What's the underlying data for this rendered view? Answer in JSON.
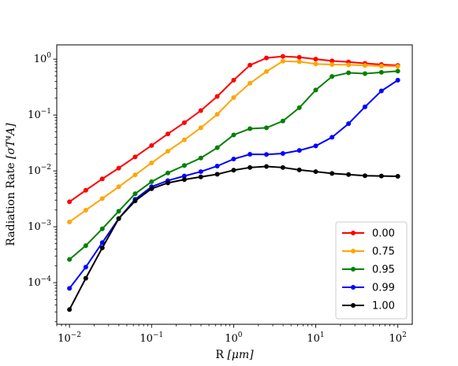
{
  "chart_data": {
    "type": "line",
    "xlabel_main": "R",
    "xlabel_unit": "[μm]",
    "ylabel_main": "Radiation Rate",
    "ylabel_unit": "[σT⁴A]",
    "xscale": "log",
    "yscale": "log",
    "xlim": [
      0.007,
      150
    ],
    "ylim": [
      1.8e-05,
      1.8
    ],
    "xticks": [
      {
        "value": 0.01,
        "base": "10",
        "exp": "−2"
      },
      {
        "value": 0.1,
        "base": "10",
        "exp": "−1"
      },
      {
        "value": 1,
        "base": "10",
        "exp": "0"
      },
      {
        "value": 10,
        "base": "10",
        "exp": "1"
      },
      {
        "value": 100,
        "base": "10",
        "exp": "2"
      }
    ],
    "yticks": [
      {
        "value": 0.0001,
        "base": "10",
        "exp": "−4"
      },
      {
        "value": 0.001,
        "base": "10",
        "exp": "−3"
      },
      {
        "value": 0.01,
        "base": "10",
        "exp": "−2"
      },
      {
        "value": 0.1,
        "base": "10",
        "exp": "−1"
      },
      {
        "value": 1,
        "base": "10",
        "exp": "0"
      }
    ],
    "legend_position": "lower-right",
    "grid": false,
    "x": [
      0.01,
      0.0158,
      0.0251,
      0.0398,
      0.0631,
      0.1,
      0.158,
      0.251,
      0.398,
      0.631,
      1.0,
      1.58,
      2.51,
      3.98,
      6.31,
      10.0,
      15.8,
      25.1,
      39.8,
      63.1,
      100.0
    ],
    "series": [
      {
        "name": "0.00",
        "color": "#ff0000",
        "values": [
          0.0028,
          0.0045,
          0.0072,
          0.0112,
          0.0178,
          0.0285,
          0.046,
          0.073,
          0.12,
          0.215,
          0.42,
          0.78,
          1.05,
          1.12,
          1.08,
          1.0,
          0.93,
          0.89,
          0.84,
          0.8,
          0.77
        ]
      },
      {
        "name": "0.75",
        "color": "#ffa500",
        "values": [
          0.00122,
          0.00198,
          0.0032,
          0.0052,
          0.0085,
          0.0139,
          0.0225,
          0.036,
          0.059,
          0.103,
          0.205,
          0.37,
          0.6,
          0.92,
          0.9,
          0.82,
          0.8,
          0.79,
          0.77,
          0.75,
          0.74
        ]
      },
      {
        "name": "0.95",
        "color": "#008000",
        "values": [
          0.00026,
          0.00046,
          0.00092,
          0.0019,
          0.0039,
          0.0064,
          0.0092,
          0.0125,
          0.017,
          0.026,
          0.044,
          0.057,
          0.059,
          0.078,
          0.135,
          0.28,
          0.49,
          0.57,
          0.55,
          0.58,
          0.61
        ]
      },
      {
        "name": "0.99",
        "color": "#0000ff",
        "values": [
          7.9e-05,
          0.00019,
          0.00052,
          0.0014,
          0.0031,
          0.0052,
          0.0067,
          0.0081,
          0.0097,
          0.0122,
          0.0163,
          0.0198,
          0.0197,
          0.0205,
          0.0232,
          0.028,
          0.04,
          0.07,
          0.14,
          0.27,
          0.42
        ]
      },
      {
        "name": "1.00",
        "color": "#000000",
        "values": [
          3.3e-05,
          0.00012,
          0.00042,
          0.0014,
          0.0029,
          0.0048,
          0.0061,
          0.007,
          0.0078,
          0.0087,
          0.0103,
          0.0115,
          0.012,
          0.0115,
          0.0104,
          0.0097,
          0.009,
          0.0086,
          0.0082,
          0.0081,
          0.008
        ]
      }
    ]
  }
}
